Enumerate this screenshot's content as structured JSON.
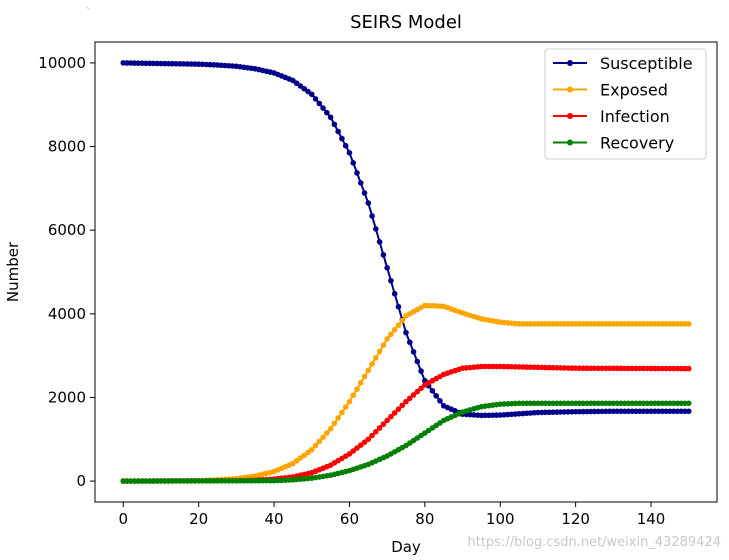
{
  "corner_mark": "ˎ",
  "chart_data": {
    "type": "line",
    "title": "SEIRS Model",
    "xlabel": "Day",
    "ylabel": "Number",
    "xlim": [
      -7.5,
      157.5
    ],
    "ylim": [
      -500,
      10500
    ],
    "xticks": [
      0,
      20,
      40,
      60,
      80,
      100,
      120,
      140
    ],
    "yticks": [
      0,
      2000,
      4000,
      6000,
      8000,
      10000
    ],
    "grid": false,
    "legend_position": "top-right",
    "marker": "dot",
    "x": {
      "start": 0,
      "end": 150,
      "step": 1
    },
    "series": [
      {
        "name": "Susceptible",
        "color": "#00008b",
        "knots": [
          [
            0,
            10000
          ],
          [
            10,
            9985
          ],
          [
            20,
            9970
          ],
          [
            25,
            9950
          ],
          [
            30,
            9920
          ],
          [
            35,
            9860
          ],
          [
            40,
            9760
          ],
          [
            45,
            9580
          ],
          [
            50,
            9250
          ],
          [
            55,
            8700
          ],
          [
            60,
            7850
          ],
          [
            65,
            6650
          ],
          [
            70,
            5100
          ],
          [
            75,
            3550
          ],
          [
            80,
            2400
          ],
          [
            85,
            1800
          ],
          [
            90,
            1600
          ],
          [
            95,
            1570
          ],
          [
            100,
            1580
          ],
          [
            105,
            1610
          ],
          [
            110,
            1640
          ],
          [
            120,
            1660
          ],
          [
            130,
            1670
          ],
          [
            150,
            1670
          ]
        ]
      },
      {
        "name": "Exposed",
        "color": "#ffa500",
        "knots": [
          [
            0,
            0
          ],
          [
            20,
            10
          ],
          [
            25,
            30
          ],
          [
            30,
            60
          ],
          [
            35,
            120
          ],
          [
            40,
            230
          ],
          [
            45,
            420
          ],
          [
            50,
            750
          ],
          [
            55,
            1250
          ],
          [
            60,
            1900
          ],
          [
            65,
            2650
          ],
          [
            70,
            3400
          ],
          [
            75,
            3950
          ],
          [
            80,
            4200
          ],
          [
            85,
            4180
          ],
          [
            90,
            4020
          ],
          [
            95,
            3880
          ],
          [
            100,
            3800
          ],
          [
            105,
            3760
          ],
          [
            120,
            3760
          ],
          [
            150,
            3760
          ]
        ]
      },
      {
        "name": "Infection",
        "color": "#ff0000",
        "knots": [
          [
            0,
            0
          ],
          [
            30,
            10
          ],
          [
            35,
            20
          ],
          [
            40,
            50
          ],
          [
            45,
            100
          ],
          [
            50,
            200
          ],
          [
            55,
            380
          ],
          [
            60,
            650
          ],
          [
            65,
            1000
          ],
          [
            70,
            1450
          ],
          [
            75,
            1900
          ],
          [
            80,
            2300
          ],
          [
            85,
            2550
          ],
          [
            90,
            2700
          ],
          [
            95,
            2740
          ],
          [
            100,
            2740
          ],
          [
            110,
            2720
          ],
          [
            120,
            2700
          ],
          [
            150,
            2690
          ]
        ]
      },
      {
        "name": "Recovery",
        "color": "#008000",
        "knots": [
          [
            0,
            0
          ],
          [
            40,
            10
          ],
          [
            45,
            30
          ],
          [
            50,
            70
          ],
          [
            55,
            140
          ],
          [
            60,
            250
          ],
          [
            65,
            400
          ],
          [
            70,
            600
          ],
          [
            75,
            850
          ],
          [
            80,
            1150
          ],
          [
            85,
            1450
          ],
          [
            90,
            1650
          ],
          [
            95,
            1780
          ],
          [
            100,
            1840
          ],
          [
            105,
            1860
          ],
          [
            120,
            1860
          ],
          [
            150,
            1860
          ]
        ]
      }
    ]
  },
  "watermark": "https://blog.csdn.net/weixin_43289424"
}
